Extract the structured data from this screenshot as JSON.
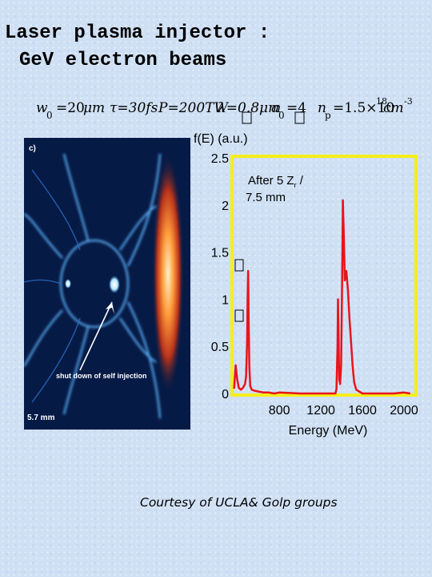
{
  "slide": {
    "title_line1": "Laser plasma injector :",
    "title_line2": "GeV electron beams",
    "credit": "Courtesy of UCLA& Golp groups"
  },
  "params": {
    "w0_sym": "w",
    "w0_sub": "0",
    "w0_val": "=20",
    "w0_unit": "μm",
    "tau": "τ=30fs",
    "P": "P=200TW",
    "lambda": "λ=0.8μm",
    "a0_sym": "a",
    "a0_sub": "0",
    "a0_val": "=4",
    "np_sym": "n",
    "np_sub": "p",
    "np_val": "=1.5×10",
    "np_exp": "18",
    "np_unit": "cm",
    "np_unit_exp": "-3"
  },
  "simulation": {
    "panel_label": "c)",
    "annotation": "shut down of self injection",
    "distance": "5.7 mm"
  },
  "chart_data": {
    "type": "line",
    "ylabel": "f(E) (a.u.)",
    "xlabel": "Energy (MeV)",
    "annotation_line1": "After  5  Z",
    "annotation_sub": "r",
    "annotation_tail": " /",
    "annotation_line2": "7.5 mm",
    "xlim": [
      360,
      2100
    ],
    "ylim": [
      0,
      2.5
    ],
    "xticks": [
      800,
      1200,
      1600,
      2000
    ],
    "xtick_labels": [
      "800",
      "1200",
      "1600",
      "2000"
    ],
    "yticks": [
      0,
      0.5,
      1,
      1.5,
      2,
      2.5
    ],
    "ytick_labels": [
      "0",
      "0.5",
      "1",
      "1.5",
      "2",
      "2.5"
    ],
    "grid": false,
    "series": [
      {
        "color": "#e8141c",
        "points": [
          [
            365,
            0.05
          ],
          [
            380,
            0.3
          ],
          [
            395,
            0.15
          ],
          [
            410,
            0.06
          ],
          [
            430,
            0.04
          ],
          [
            450,
            0.06
          ],
          [
            470,
            0.1
          ],
          [
            480,
            0.18
          ],
          [
            490,
            0.55
          ],
          [
            495,
            1.0
          ],
          [
            500,
            1.3
          ],
          [
            505,
            0.8
          ],
          [
            512,
            0.28
          ],
          [
            520,
            0.08
          ],
          [
            535,
            0.04
          ],
          [
            560,
            0.03
          ],
          [
            600,
            0.02
          ],
          [
            650,
            0.01
          ],
          [
            700,
            0.01
          ],
          [
            750,
            0.0
          ],
          [
            800,
            0.01
          ],
          [
            1000,
            0.0
          ],
          [
            1200,
            0.0
          ],
          [
            1340,
            0.0
          ],
          [
            1350,
            0.05
          ],
          [
            1360,
            0.5
          ],
          [
            1365,
            1.0
          ],
          [
            1370,
            0.6
          ],
          [
            1376,
            0.15
          ],
          [
            1385,
            0.1
          ],
          [
            1395,
            0.3
          ],
          [
            1405,
            1.2
          ],
          [
            1412,
            2.05
          ],
          [
            1420,
            1.7
          ],
          [
            1430,
            1.2
          ],
          [
            1445,
            1.3
          ],
          [
            1460,
            1.1
          ],
          [
            1475,
            0.8
          ],
          [
            1490,
            0.55
          ],
          [
            1505,
            0.3
          ],
          [
            1520,
            0.12
          ],
          [
            1540,
            0.04
          ],
          [
            1600,
            0.0
          ],
          [
            1700,
            0.0
          ],
          [
            1800,
            0.0
          ],
          [
            1900,
            0.0
          ],
          [
            2000,
            0.01
          ],
          [
            2060,
            0.0
          ]
        ]
      }
    ]
  },
  "colors": {
    "chart_frame": "#f5ee1a",
    "series": "#e8141c",
    "panel_bg": "#061a46"
  }
}
